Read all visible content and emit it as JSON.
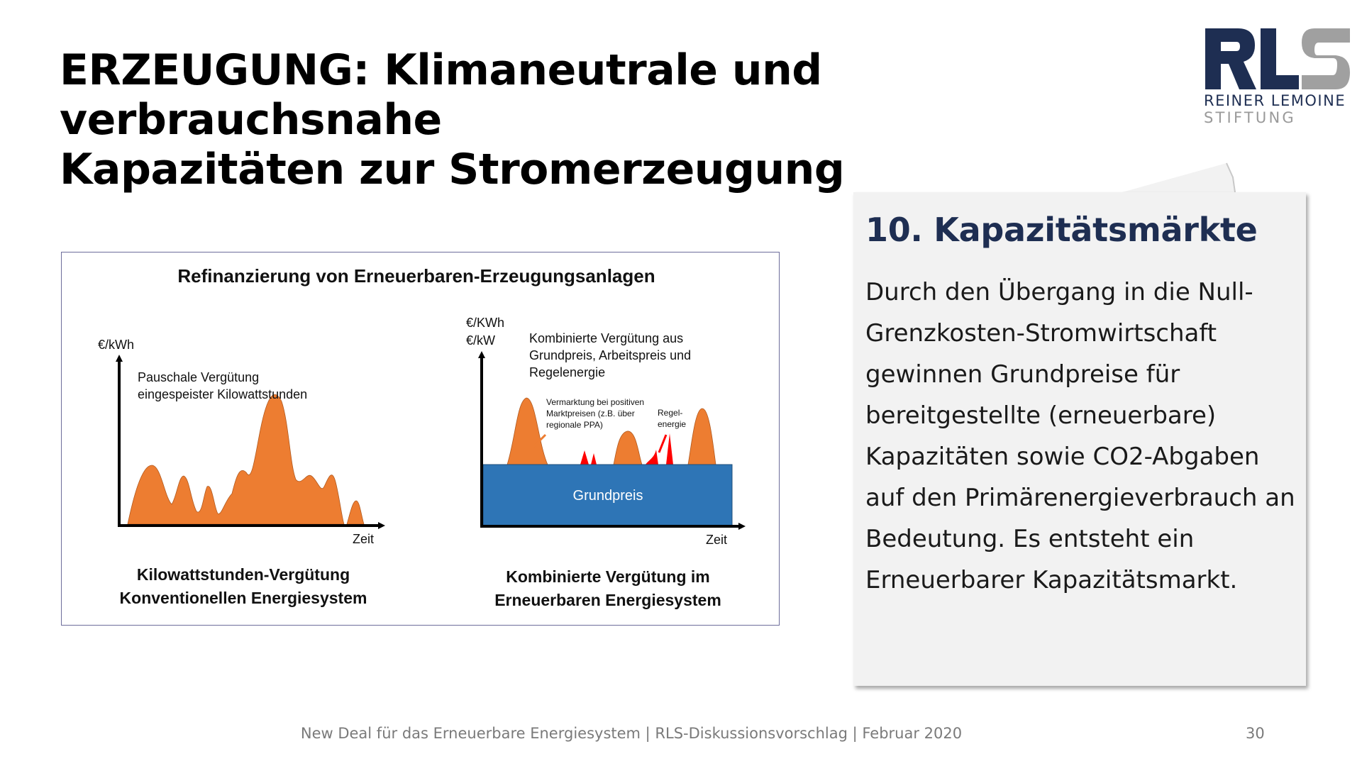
{
  "slide": {
    "title_line1": "ERZEUGUNG: Klimaneutrale und verbrauchsnahe",
    "title_line2": "Kapazitäten zur Stromerzeugung"
  },
  "logo": {
    "wordmark": "RLS",
    "line1": "REINER LEMOINE",
    "line2": "STIFTUNG",
    "colors": {
      "dark": "#1e2e52",
      "grey": "#a0a0a0"
    }
  },
  "diagram": {
    "title": "Refinanzierung von Erneuerbaren-Erzeugungsanlagen",
    "left": {
      "y_axis_label": "€/kWh",
      "x_axis_label": "Zeit",
      "annotation_line1": "Pauschale Vergütung",
      "annotation_line2": "eingespeister Kilowattstunden",
      "caption_line1": "Kilowattstunden-Vergütung",
      "caption_line2": "Konventionellen Energiesystem"
    },
    "right": {
      "y_axis_label_line1": "€/KWh",
      "y_axis_label_line2": "€/kW",
      "x_axis_label": "Zeit",
      "annotation_line1": "Kombinierte Vergütung aus",
      "annotation_line2": "Grundpreis, Arbeitspreis und",
      "annotation_line3": "Regelenergie",
      "small_note_line1": "Vermarktung bei positiven",
      "small_note_line2": "Marktpreisen (z.B. über",
      "small_note_line3": "regionale PPA)",
      "regel_line1": "Regel-",
      "regel_line2": "energie",
      "base_label": "Grundpreis",
      "caption_line1": "Kombinierte Vergütung im",
      "caption_line2": "Erneuerbaren Energiesystem"
    },
    "colors": {
      "orange": "#ed7d31",
      "blue": "#2e75b6",
      "red": "#ff0000"
    }
  },
  "card": {
    "heading": "10. Kapazitätsmärkte",
    "body": "Durch den Übergang in die Null-Grenzkosten-Stromwirtschaft gewinnen Grundpreise für bereitgestellte (erneuerbare) Kapazitäten sowie CO2-Abgaben auf den Primärenergieverbrauch an Bedeutung. Es entsteht ein Erneuerbarer Kapazitätsmarkt."
  },
  "footer": {
    "text": "New Deal für das Erneuerbare Energiesystem | RLS-Diskussionsvorschlag | Februar 2020",
    "page_number": "30"
  }
}
